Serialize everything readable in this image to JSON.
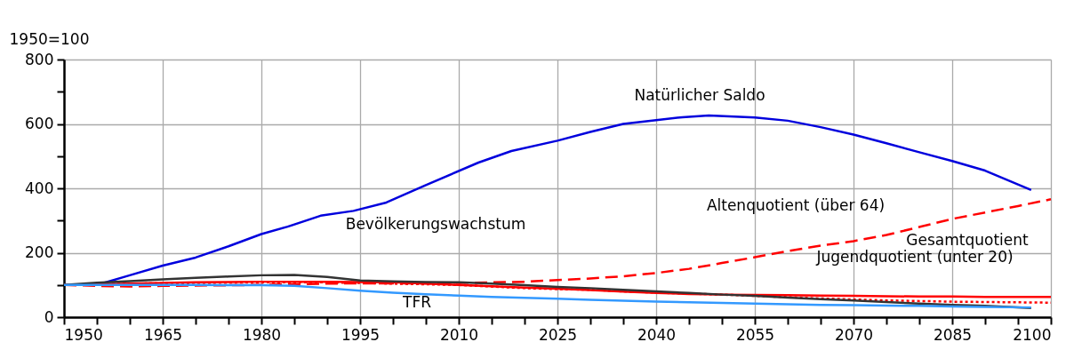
{
  "chart_data": {
    "type": "line",
    "ylabel": "1950=100",
    "x": [
      1950,
      1955,
      1960,
      1965,
      1970,
      1975,
      1980,
      1985,
      1990,
      1995,
      2000,
      2005,
      2010,
      2015,
      2020,
      2025,
      2030,
      2035,
      2040,
      2045,
      2050,
      2055,
      2060,
      2065,
      2070,
      2075,
      2080,
      2085,
      2090,
      2095,
      2100
    ],
    "xlim": [
      1950,
      2100
    ],
    "xticks": [
      1950,
      {
        "value": 1955,
        "label": null
      },
      {
        "value": 1960,
        "label": null
      },
      1965,
      {
        "value": 1970,
        "label": null
      },
      {
        "value": 1975,
        "label": null
      },
      1980,
      {
        "value": 1985,
        "label": null
      },
      {
        "value": 1990,
        "label": null
      },
      1995,
      {
        "value": 2000,
        "label": null
      },
      {
        "value": 2005,
        "label": null
      },
      2010,
      {
        "value": 2015,
        "label": null
      },
      {
        "value": 2020,
        "label": null
      },
      2025,
      {
        "value": 2030,
        "label": null
      },
      {
        "value": 2035,
        "label": null
      },
      2040,
      {
        "value": 2045,
        "label": null
      },
      {
        "value": 2050,
        "label": null
      },
      2055,
      {
        "value": 2060,
        "label": null
      },
      {
        "value": 2065,
        "label": null
      },
      2070,
      {
        "value": 2075,
        "label": null
      },
      {
        "value": 2080,
        "label": null
      },
      2085,
      {
        "value": 2090,
        "label": null
      },
      {
        "value": 2095,
        "label": null
      },
      2100
    ],
    "ylim": [
      0,
      800
    ],
    "yticks": [
      0,
      {
        "value": 100,
        "label": null
      },
      200,
      {
        "value": 300,
        "label": null
      },
      400,
      {
        "value": 500,
        "label": null
      },
      600,
      {
        "value": 700,
        "label": null
      },
      800
    ],
    "grid": true,
    "marker": "none",
    "series": [
      {
        "color": "#0000dd",
        "line_style": "solid",
        "x": [
          1955,
          1960,
          1965,
          1970,
          1975,
          1980,
          1984,
          1989,
          1994,
          1999,
          2005,
          2013,
          2018,
          2025,
          2030,
          2035,
          2040,
          2044,
          2048,
          2055,
          2060,
          2065,
          2070,
          2075,
          2080,
          2085,
          2090,
          2097
        ],
        "values": [
          100,
          130,
          160,
          185,
          220,
          258,
          281,
          315,
          330,
          356,
          410,
          480,
          516,
          548,
          575,
          600,
          612,
          621,
          626,
          620,
          610,
          590,
          567,
          540,
          512,
          485,
          455,
          395
        ]
      },
      {
        "color": "#ff0000",
        "line_style": "dashed",
        "values": [
          100,
          97,
          95,
          97,
          98,
          99,
          100,
          102,
          104,
          105,
          105,
          105,
          106,
          108,
          110,
          115,
          120,
          127,
          137,
          150,
          168,
          186,
          205,
          222,
          236,
          255,
          280,
          305,
          325,
          345,
          366
        ]
      },
      {
        "color": "#ff0000",
        "line_style": "solid",
        "values": [
          100,
          102,
          104,
          106,
          108,
          109,
          110,
          110,
          110,
          109,
          108,
          104,
          100,
          96,
          92,
          88,
          84,
          79,
          75,
          72,
          70,
          69,
          68,
          67,
          66,
          65,
          64,
          64,
          63,
          63,
          63
        ]
      },
      {
        "color": "#ff0000",
        "line_style": "dotted",
        "values": [
          100,
          102,
          104,
          105,
          106,
          107,
          108,
          108,
          108,
          106,
          104,
          102,
          100,
          95,
          90,
          87,
          85,
          80,
          76,
          73,
          70,
          66,
          62,
          58,
          55,
          52,
          50,
          48,
          47,
          46,
          45
        ]
      },
      {
        "color": "#333333",
        "line_style": "solid",
        "x": [
          1950,
          1955,
          1960,
          1965,
          1970,
          1975,
          1980,
          1985,
          1990,
          1995,
          2000,
          2005,
          2010,
          2015,
          2020,
          2025,
          2030,
          2035,
          2040,
          2045,
          2050,
          2055,
          2060,
          2065,
          2070,
          2075,
          2080,
          2085,
          2090,
          2097
        ],
        "values": [
          100,
          107,
          112,
          117,
          122,
          126,
          130,
          131,
          125,
          114,
          111,
          109,
          108,
          104,
          99,
          94,
          90,
          85,
          80,
          75,
          70,
          66,
          61,
          56,
          52,
          47,
          42,
          38,
          35,
          28
        ]
      },
      {
        "color": "#3399ff",
        "line_style": "solid",
        "x": [
          1950,
          1955,
          1960,
          1965,
          1970,
          1975,
          1980,
          1985,
          1990,
          1995,
          2000,
          2005,
          2010,
          2015,
          2020,
          2025,
          2030,
          2035,
          2040,
          2045,
          2050,
          2055,
          2060,
          2065,
          2070,
          2075,
          2080,
          2085,
          2090,
          2097
        ],
        "values": [
          100,
          100,
          100,
          100,
          100,
          99,
          99,
          97,
          90,
          82,
          76,
          71,
          67,
          63,
          60,
          57,
          54,
          51,
          48,
          46,
          44,
          42,
          40,
          38,
          37,
          36,
          35,
          33,
          32,
          30
        ]
      }
    ],
    "annotations": [
      "Natürlicher Saldo",
      "Altenquotient (über 64)",
      "Bevölkerungswachstum",
      "TFR",
      "Gesamtquotient",
      "Jugendquotient (unter 20)"
    ]
  }
}
